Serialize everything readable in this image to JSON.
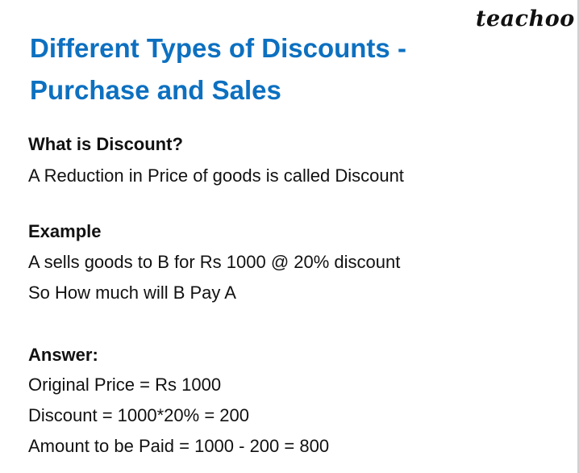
{
  "logo": "teachoo",
  "title": [
    "Different Types of Discounts -",
    "Purchase and Sales"
  ],
  "question_heading": "What is Discount?",
  "definition": "A Reduction in Price of goods is called Discount",
  "example_heading": "Example",
  "example_lines": [
    "A sells goods to B for Rs 1000 @ 20% discount",
    "So How much will B Pay A"
  ],
  "answer_heading": "Answer:",
  "answer_lines": [
    "Original Price = Rs 1000",
    "Discount = 1000*20% = 200",
    "Amount to be Paid = 1000 - 200 = 800"
  ],
  "colors": {
    "title": "#0d70c0",
    "text": "#111111"
  }
}
